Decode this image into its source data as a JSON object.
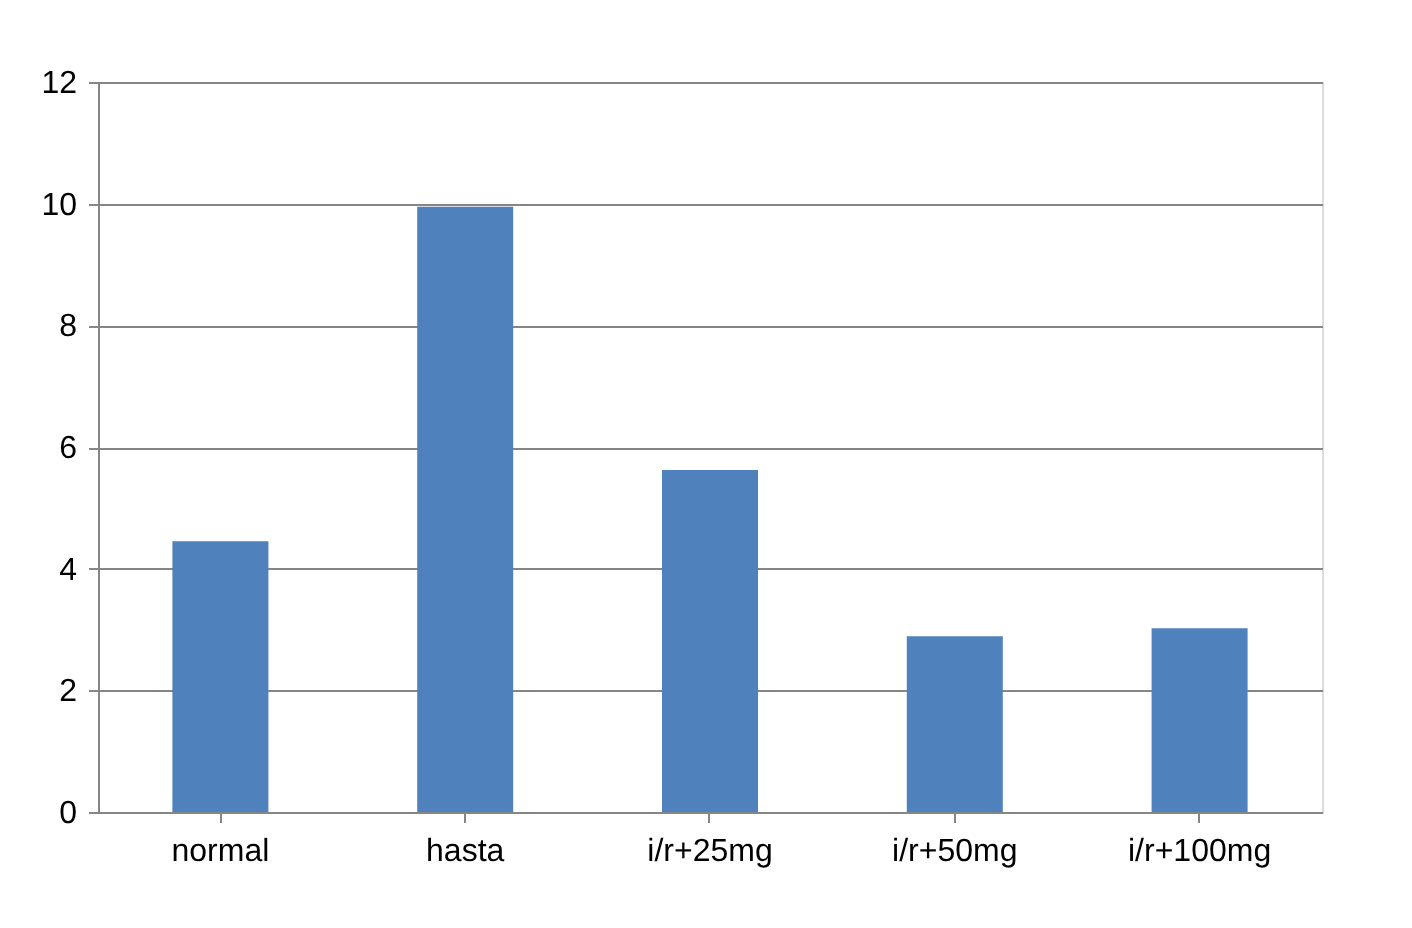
{
  "chart_data": {
    "type": "bar",
    "categories": [
      "normal",
      "hasta",
      "i/r+25mg",
      "i/r+50mg",
      "i/r+100mg"
    ],
    "values": [
      4.45,
      9.95,
      5.62,
      2.89,
      3.02
    ],
    "color": "#4f81bd",
    "ylim": [
      0,
      12
    ],
    "yticks": [
      0,
      2,
      4,
      6,
      8,
      10,
      12
    ],
    "grid": "y"
  }
}
